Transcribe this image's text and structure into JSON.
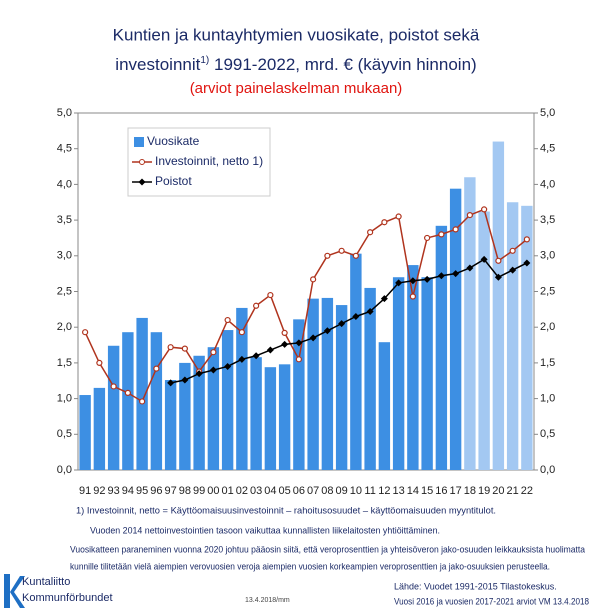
{
  "chart_data": {
    "type": "bar_line",
    "title_line1": "Kuntien ja kuntayhtymien vuosikate, poistot sekä",
    "title_line2": "investoinnit",
    "title_sup": "1)",
    "title_line2_rest": " 1991-2022, mrd. € (käyvin hinnoin)",
    "subtitle": "(arviot painelaskelman mukaan)",
    "categories": [
      "91",
      "92",
      "93",
      "94",
      "95",
      "96",
      "97",
      "98",
      "99",
      "00",
      "01",
      "02",
      "03",
      "04",
      "05",
      "06",
      "07",
      "08",
      "09",
      "10",
      "11",
      "12",
      "13",
      "14",
      "15",
      "16",
      "17",
      "18",
      "19",
      "20",
      "21",
      "22"
    ],
    "series": [
      {
        "name": "Vuosikate",
        "kind": "bar",
        "color": "#3d8fe3",
        "colors": [
          "#3d8fe3",
          "#3d8fe3",
          "#3d8fe3",
          "#3d8fe3",
          "#3d8fe3",
          "#3d8fe3",
          "#3d8fe3",
          "#3d8fe3",
          "#3d8fe3",
          "#3d8fe3",
          "#3d8fe3",
          "#3d8fe3",
          "#3d8fe3",
          "#3d8fe3",
          "#3d8fe3",
          "#3d8fe3",
          "#3d8fe3",
          "#3d8fe3",
          "#3d8fe3",
          "#3d8fe3",
          "#3d8fe3",
          "#3d8fe3",
          "#3d8fe3",
          "#3d8fe3",
          "#3d8fe3",
          "#3d8fe3",
          "#3d8fe3",
          "#a3c8f2",
          "#a3c8f2",
          "#a3c8f2",
          "#a3c8f2",
          "#a3c8f2"
        ],
        "values": [
          1.05,
          1.15,
          1.74,
          1.93,
          2.13,
          1.93,
          1.26,
          1.5,
          1.6,
          1.72,
          1.96,
          2.27,
          1.58,
          1.44,
          1.48,
          2.11,
          2.4,
          2.41,
          2.31,
          3.03,
          2.55,
          1.79,
          2.7,
          2.87,
          2.7,
          3.42,
          3.94,
          4.1,
          3.62,
          4.6,
          3.75,
          3.7
        ]
      },
      {
        "name": "Investoinnit, netto 1)",
        "kind": "line",
        "marker": "circle",
        "color": "#b0341e",
        "values": [
          1.93,
          1.5,
          1.17,
          1.08,
          0.96,
          1.42,
          1.72,
          1.7,
          1.38,
          1.65,
          2.1,
          1.93,
          2.3,
          2.45,
          1.92,
          1.55,
          2.67,
          3.0,
          3.07,
          3.0,
          3.33,
          3.47,
          3.55,
          2.43,
          3.25,
          3.3,
          3.37,
          3.57,
          3.65,
          2.93,
          3.07,
          3.23
        ]
      },
      {
        "name": "Poistot",
        "kind": "line",
        "marker": "diamond",
        "color": "#000000",
        "values": [
          null,
          null,
          null,
          null,
          null,
          null,
          1.22,
          1.26,
          1.35,
          1.4,
          1.45,
          1.55,
          1.6,
          1.68,
          1.76,
          1.78,
          1.85,
          1.95,
          2.05,
          2.15,
          2.22,
          2.4,
          2.62,
          2.65,
          2.67,
          2.72,
          2.75,
          2.83,
          2.95,
          2.7,
          2.8,
          2.9
        ]
      }
    ],
    "ylim": [
      0,
      5
    ],
    "yticks": [
      {
        "value": 0,
        "label": "0,0"
      },
      {
        "value": 0.5,
        "label": "0,5"
      },
      {
        "value": 1,
        "label": "1,0"
      },
      {
        "value": 1.5,
        "label": "1,5"
      },
      {
        "value": 2,
        "label": "2,0"
      },
      {
        "value": 2.5,
        "label": "2,5"
      },
      {
        "value": 3,
        "label": "3,0"
      },
      {
        "value": 3.5,
        "label": "3,5"
      },
      {
        "value": 4,
        "label": "4,0"
      },
      {
        "value": 4.5,
        "label": "4,5"
      },
      {
        "value": 5,
        "label": "5,0"
      }
    ],
    "grid": false,
    "notes": [
      "1) Investoinnit, netto  = Käyttöomaisuusinvestoinnit – rahoitusosuudet – käyttöomaisuuden myyntitulot.",
      "Vuoden 2014 nettoinvestointien tasoon vaikuttaa kunnallisten liikelaitosten yhtiöittäminen.",
      "Vuosikatteen paraneminen vuonna 2020 johtuu pääosin siitä, että veroprosenttien ja yhteisöveron jako-osuuden leikkauksista huolimatta",
      "kunnille tilitetään vielä aiempien verovuosien veroja aiempien vuosien korkeampien veroprosenttien ja jako-osuuksien perusteella."
    ],
    "logo_line1": "Kuntaliitto",
    "logo_line2": "Kommunförbundet",
    "date": "13.4.2018/mm",
    "source_line1": "Lähde: Vuodet 1991-2015 Tilastokeskus.",
    "source_line2": "Vuosi 2016 ja vuosien 2017-2021 arviot VM 13.4.2018"
  }
}
